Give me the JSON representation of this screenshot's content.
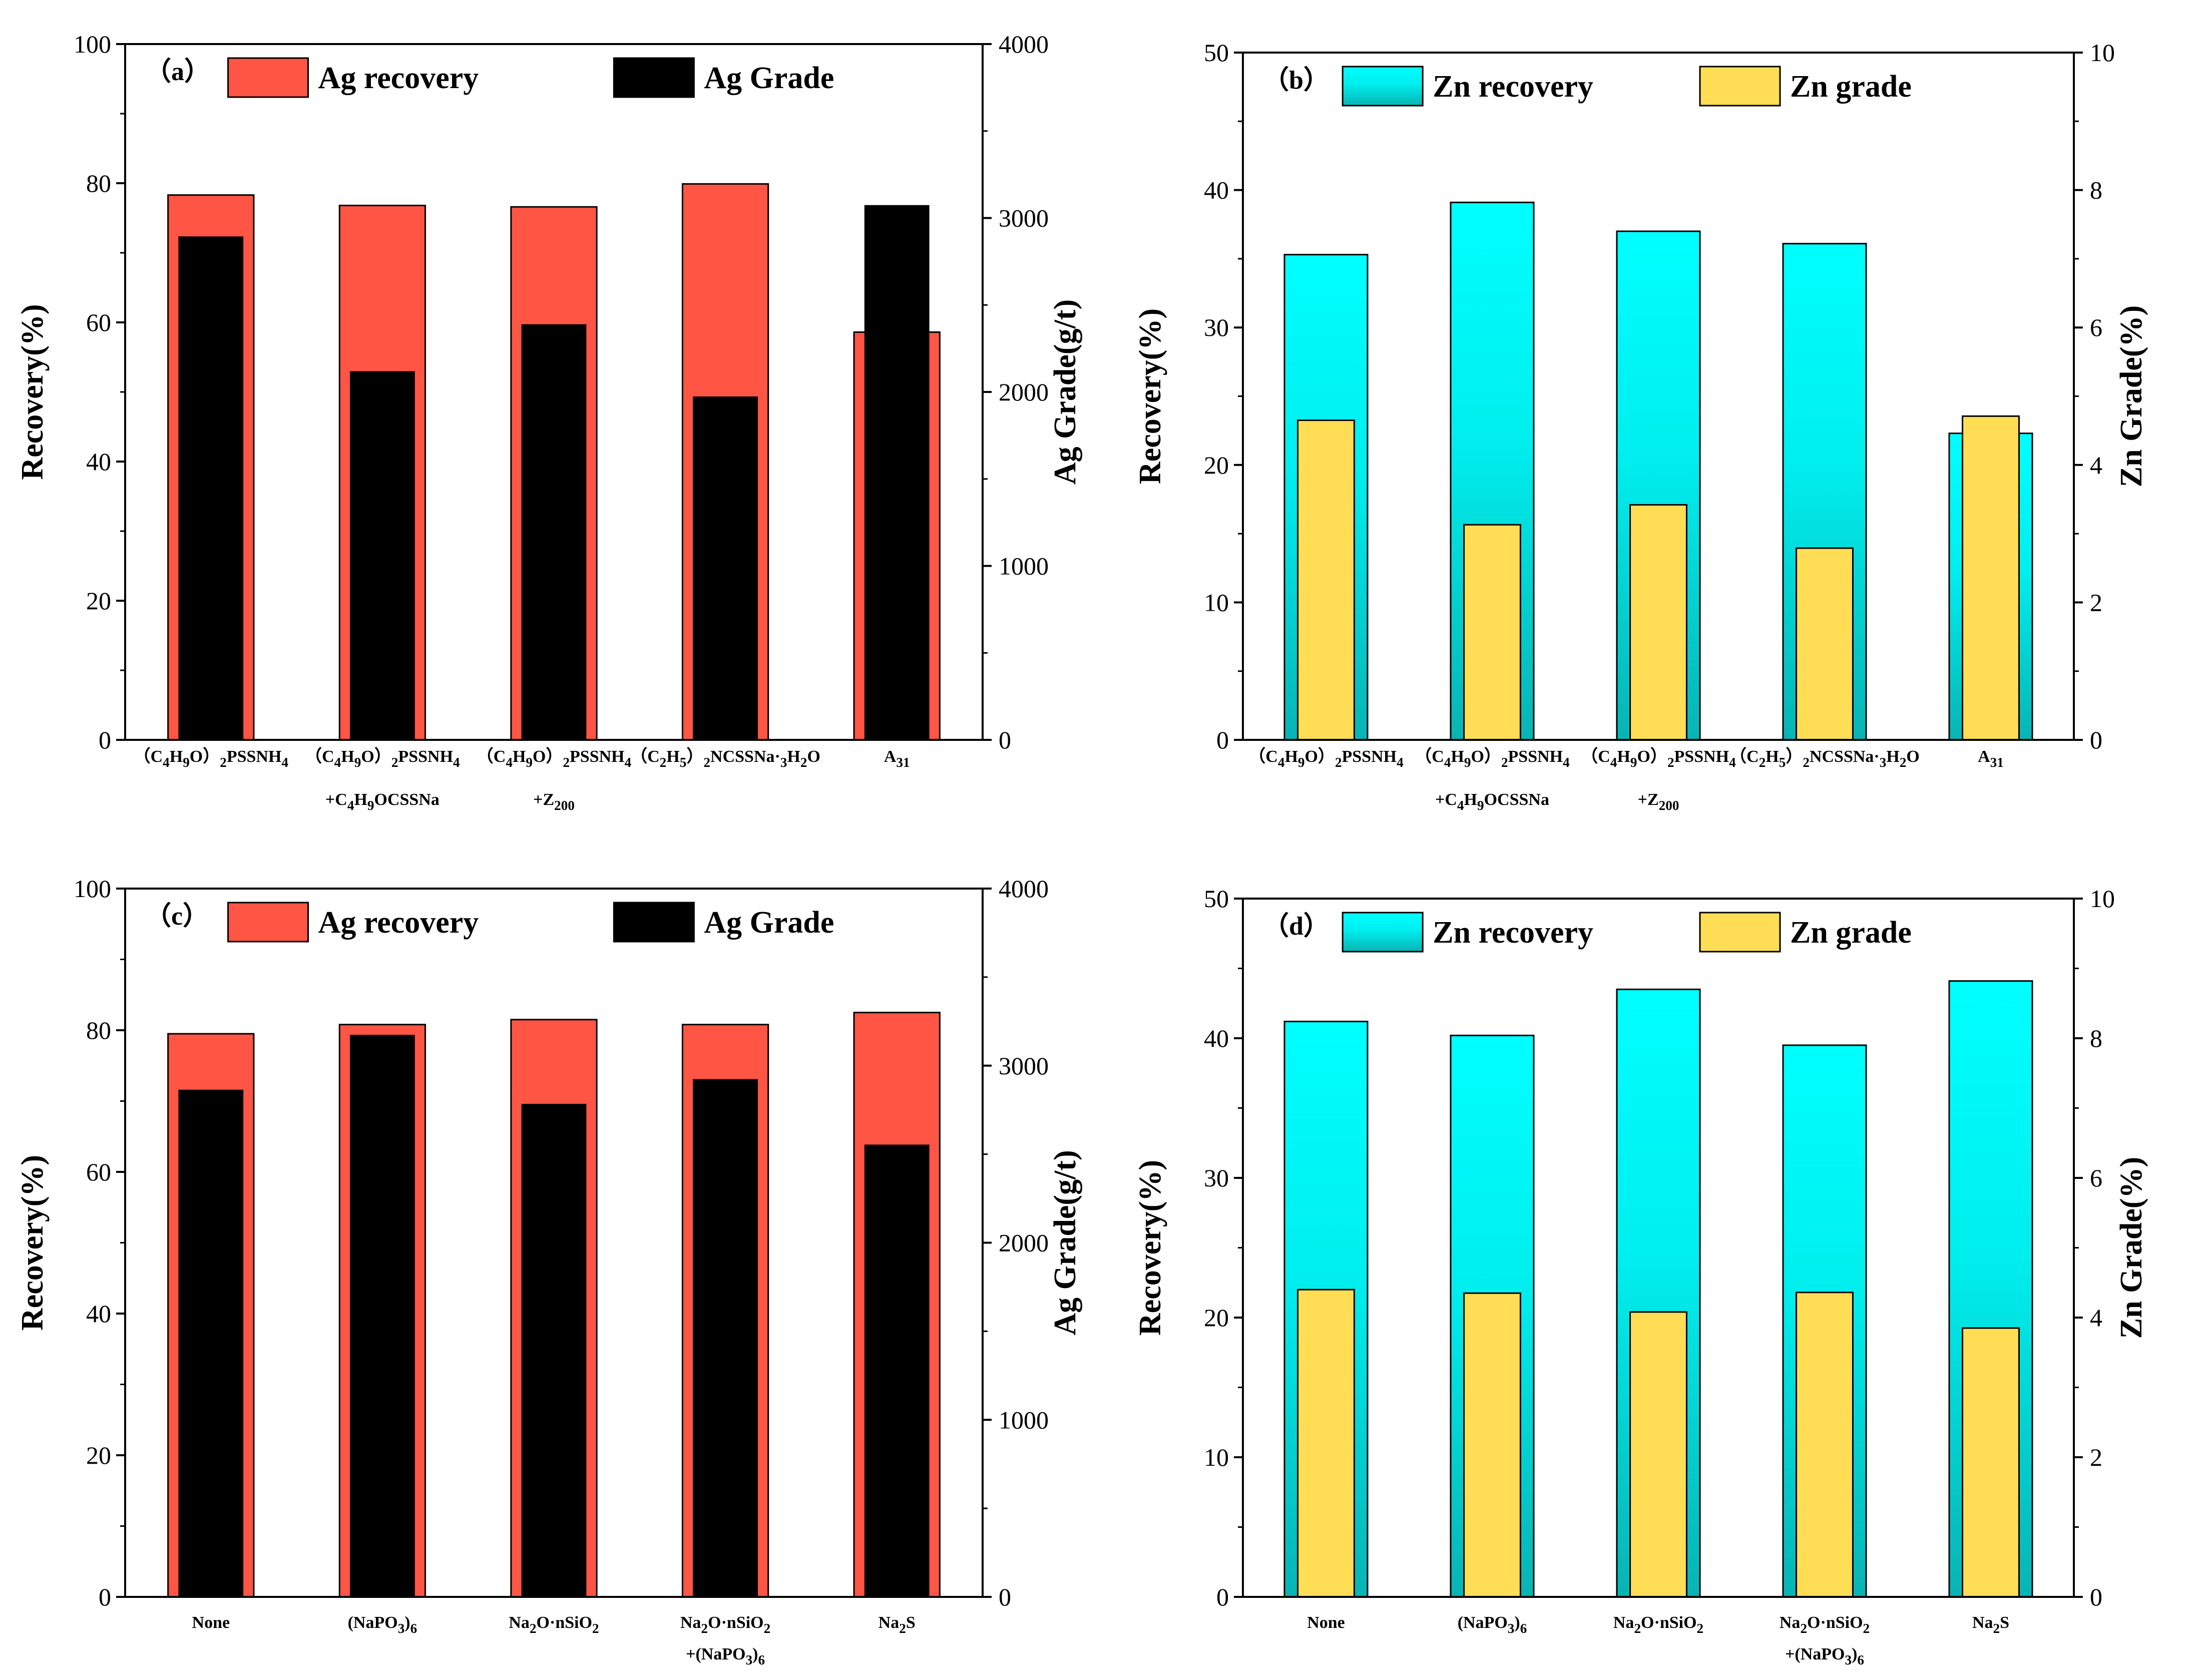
{
  "figure": {
    "colors": {
      "ag_recovery": "#ff5545",
      "ag_grade": "#000000",
      "zn_recovery_top": "#00ffff",
      "zn_recovery_bottom": "#08b4b4",
      "zn_grade": "#ffdd55",
      "axis": "#000000"
    }
  },
  "chart_data": [
    {
      "id": "a",
      "type": "bar",
      "panel_label": "（a）",
      "categories": [
        {
          "main": "（C4H9O）2PSSNH4",
          "sub": ""
        },
        {
          "main": "（C4H9O）2PSSNH4",
          "sub": "+C4H9OCSSNa"
        },
        {
          "main": "（C4H9O）2PSSNH4",
          "sub": "+Z200"
        },
        {
          "main": "（C2H5）2NCSSNa·3H2O",
          "sub": ""
        },
        {
          "main": "A31",
          "sub": ""
        }
      ],
      "ylabel_left": "Recovery(%)",
      "ylabel_right": "Ag Grade(g/t)",
      "ylim_left": [
        0,
        100
      ],
      "ylim_right": [
        0,
        4000
      ],
      "yticks_left": [
        "0",
        "20",
        "40",
        "60",
        "80",
        "100"
      ],
      "yticks_right": [
        "0",
        "1000",
        "2000",
        "3000",
        "4000"
      ],
      "series": [
        {
          "name": "Ag recovery",
          "axis": "left",
          "style": "ag_recovery",
          "values": [
            78.3,
            76.8,
            76.6,
            79.9,
            58.6
          ]
        },
        {
          "name": "Ag Grade",
          "axis": "right",
          "style": "ag_grade",
          "values": [
            2890,
            2115,
            2385,
            1970,
            3070
          ]
        }
      ],
      "legend": [
        "Ag recovery",
        "Ag Grade"
      ]
    },
    {
      "id": "b",
      "type": "bar",
      "panel_label": "（b）",
      "categories": [
        {
          "main": "（C4H9O）2PSSNH4",
          "sub": ""
        },
        {
          "main": "（C4H9O）2PSSNH4",
          "sub": "+C4H9OCSSNa"
        },
        {
          "main": "（C4H9O）2PSSNH4",
          "sub": "+Z200"
        },
        {
          "main": "（C2H5）2NCSSNa·3H2O",
          "sub": ""
        },
        {
          "main": "A31",
          "sub": ""
        }
      ],
      "ylabel_left": "Recovery(%)",
      "ylabel_right": "Zn Grade(%)",
      "ylim_left": [
        0,
        50
      ],
      "ylim_right": [
        0,
        10
      ],
      "yticks_left": [
        "0",
        "10",
        "20",
        "30",
        "40",
        "50"
      ],
      "yticks_right": [
        "0",
        "2",
        "4",
        "6",
        "8",
        "10"
      ],
      "series": [
        {
          "name": "Zn recovery",
          "axis": "left",
          "style": "zn_recovery",
          "values": [
            35.3,
            39.1,
            37.0,
            36.1,
            22.3
          ]
        },
        {
          "name": "Zn grade",
          "axis": "right",
          "style": "zn_grade",
          "values": [
            4.65,
            3.13,
            3.42,
            2.79,
            4.71
          ]
        }
      ],
      "legend": [
        "Zn recovery",
        "Zn grade"
      ]
    },
    {
      "id": "c",
      "type": "bar",
      "panel_label": "（c）",
      "categories": [
        {
          "main": "None",
          "sub": ""
        },
        {
          "main": "(NaPO3)6",
          "sub": ""
        },
        {
          "main": "Na2O·nSiO2",
          "sub": ""
        },
        {
          "main": "Na2O·nSiO2",
          "sub": "+(NaPO3)6"
        },
        {
          "main": "Na2S",
          "sub": ""
        }
      ],
      "ylabel_left": "Recovery(%)",
      "ylabel_right": "Ag Grade(g/t)",
      "ylim_left": [
        0,
        100
      ],
      "ylim_right": [
        0,
        4000
      ],
      "yticks_left": [
        "0",
        "20",
        "40",
        "60",
        "80",
        "100"
      ],
      "yticks_right": [
        "0",
        "1000",
        "2000",
        "3000",
        "4000"
      ],
      "series": [
        {
          "name": "Ag recovery",
          "axis": "left",
          "style": "ag_recovery",
          "values": [
            79.5,
            80.8,
            81.5,
            80.8,
            82.5
          ]
        },
        {
          "name": "Ag Grade",
          "axis": "right",
          "style": "ag_grade",
          "values": [
            2860,
            3170,
            2780,
            2920,
            2550
          ]
        }
      ],
      "legend": [
        "Ag recovery",
        "Ag Grade"
      ]
    },
    {
      "id": "d",
      "type": "bar",
      "panel_label": "（d）",
      "categories": [
        {
          "main": "None",
          "sub": ""
        },
        {
          "main": "(NaPO3)6",
          "sub": ""
        },
        {
          "main": "Na2O·nSiO2",
          "sub": ""
        },
        {
          "main": "Na2O·nSiO2",
          "sub": "+(NaPO3)6"
        },
        {
          "main": "Na2S",
          "sub": ""
        }
      ],
      "ylabel_left": "Recovery(%)",
      "ylabel_right": "Zn Grade(%)",
      "ylim_left": [
        0,
        50
      ],
      "ylim_right": [
        0,
        10
      ],
      "yticks_left": [
        "0",
        "10",
        "20",
        "30",
        "40",
        "50"
      ],
      "yticks_right": [
        "0",
        "2",
        "4",
        "6",
        "8",
        "10"
      ],
      "series": [
        {
          "name": "Zn recovery",
          "axis": "left",
          "style": "zn_recovery",
          "values": [
            41.2,
            40.2,
            43.5,
            39.5,
            44.1
          ]
        },
        {
          "name": "Zn grade",
          "axis": "right",
          "style": "zn_grade",
          "values": [
            4.4,
            4.35,
            4.08,
            4.36,
            3.85
          ]
        }
      ],
      "legend": [
        "Zn recovery",
        "Zn grade"
      ]
    }
  ]
}
